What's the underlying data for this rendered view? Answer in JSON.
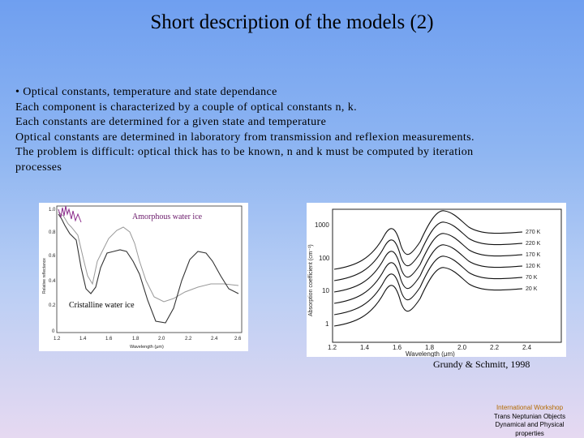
{
  "title": "Short description of the models (2)",
  "bullets": [
    "• Optical constants, temperature and state dependance",
    "Each component is characterized by a couple of optical constants n, k.",
    "Each constants are determined for a given state and temperature",
    "Optical constants are determined in laboratory from transmission and reflexion measurements.",
    "The problem is difficult: optical thick has to be known, n and k must be computed by iteration",
    "processes"
  ],
  "figure_left": {
    "overlay_amorphous": "Amorphous water ice",
    "overlay_crystalline": "Cristalline water ice",
    "ylabel": "Relative reflectance",
    "xlabel": "Wavelength (μm)",
    "yticks": [
      "1.0",
      "0.8",
      "0.6",
      "0.4",
      "0.2",
      "0"
    ],
    "xticks": [
      "1.2",
      "1.4",
      "1.6",
      "1.8",
      "2.0",
      "2.2",
      "2.4",
      "2.6"
    ]
  },
  "figure_right": {
    "ylabel": "Absorption coefficient (cm⁻¹)",
    "xlabel": "Wavelength (μm)",
    "yticks": [
      "1000",
      "100",
      "10",
      "1"
    ],
    "xticks": [
      "1.2",
      "1.4",
      "1.6",
      "1.8",
      "2.0",
      "2.2",
      "2.4"
    ],
    "temperatures": [
      "270 K",
      "220 K",
      "170 K",
      "120 K",
      "70 K",
      "20 K"
    ]
  },
  "citation": "Grundy & Schmitt, 1998",
  "footer": [
    "International Workshop",
    "Trans Neptunian Objects",
    "Dynamical and Physical",
    "properties"
  ],
  "colors": {
    "background_top": "#6f9ff0",
    "background_bottom": "#e6d9f1",
    "amorphous_label": "#6b1a6b",
    "footer_accent": "#b36a00"
  }
}
